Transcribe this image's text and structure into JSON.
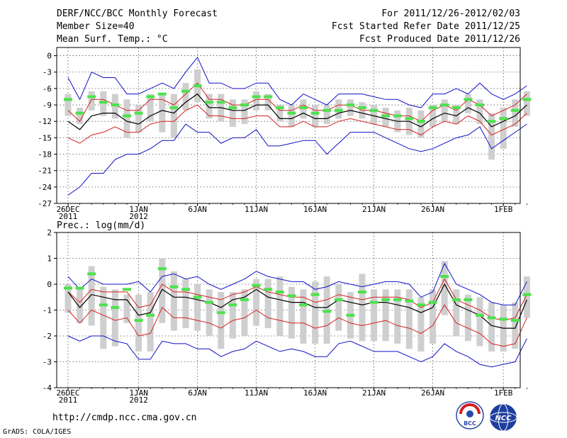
{
  "header": {
    "title": "DERF/NCC/BCC Monthly Forecast",
    "member_size": "Member Size=40",
    "variable1": "Mean Surf. Temp.: °C",
    "forecast_period": "For 2011/12/26-2012/02/03",
    "start_date": "Fcst Started Refer Date 2011/12/25",
    "produced_date": "Fcst Produced Date 2011/12/26"
  },
  "footer": {
    "url": "http://cmdp.ncc.cma.gov.cn",
    "credit": "GrADS: COLA/IGES",
    "logo_bcc": "BCC",
    "logo_ncc": "NCC"
  },
  "colors": {
    "ensemble_mean": "#000000",
    "spread_lines": "#d62020",
    "extreme_lines": "#1010c8",
    "members_bar": "#cfcfcf",
    "median_marker": "#4ce24c"
  },
  "chart_data": [
    {
      "type": "line",
      "title": "Mean Surf. Temp.: °C",
      "ylim": [
        -27,
        1.5
      ],
      "yticks": [
        0,
        -3,
        -6,
        -9,
        -12,
        -15,
        -18,
        -21,
        -24,
        -27
      ],
      "xticks": [
        {
          "day": 0,
          "label": "26DEC",
          "sub": "2011"
        },
        {
          "day": 6,
          "label": "1JAN",
          "sub": "2012"
        },
        {
          "day": 11,
          "label": "6JAN",
          "sub": ""
        },
        {
          "day": 16,
          "label": "11JAN",
          "sub": ""
        },
        {
          "day": 21,
          "label": "16JAN",
          "sub": ""
        },
        {
          "day": 26,
          "label": "21JAN",
          "sub": ""
        },
        {
          "day": 31,
          "label": "26JAN",
          "sub": ""
        },
        {
          "day": 37,
          "label": "1FEB",
          "sub": ""
        }
      ],
      "x": [
        0,
        1,
        2,
        3,
        4,
        5,
        6,
        7,
        8,
        9,
        10,
        11,
        12,
        13,
        14,
        15,
        16,
        17,
        18,
        19,
        20,
        21,
        22,
        23,
        24,
        25,
        26,
        27,
        28,
        29,
        30,
        31,
        32,
        33,
        34,
        35,
        36,
        37,
        38,
        39
      ],
      "series": [
        {
          "name": "max",
          "values": [
            -4,
            -8,
            -3,
            -4,
            -4,
            -7,
            -7,
            -6,
            -5,
            -6,
            -3,
            -0.3,
            -5,
            -5,
            -6,
            -6,
            -5,
            -5,
            -8,
            -9,
            -7,
            -8,
            -9,
            -7,
            -7,
            -7,
            -7.5,
            -8,
            -8,
            -9,
            -9.5,
            -7,
            -7,
            -6,
            -7,
            -5,
            -7,
            -8,
            -7,
            -5.5
          ]
        },
        {
          "name": "upper",
          "values": [
            -10,
            -12,
            -8,
            -8,
            -9,
            -10,
            -10,
            -8,
            -8,
            -9,
            -7,
            -5,
            -8,
            -8,
            -9,
            -9,
            -8,
            -8,
            -10,
            -10,
            -9,
            -10,
            -10,
            -9,
            -9,
            -10,
            -10,
            -10.5,
            -11,
            -11,
            -12,
            -10,
            -9,
            -10,
            -8,
            -9,
            -11,
            -10,
            -9,
            -7
          ]
        },
        {
          "name": "mean",
          "values": [
            -12,
            -13.5,
            -11,
            -10.5,
            -10.5,
            -12,
            -12.5,
            -11,
            -10,
            -10.5,
            -8.5,
            -7,
            -9.5,
            -9.5,
            -10,
            -10,
            -9,
            -9,
            -11.5,
            -11.5,
            -10.5,
            -11.5,
            -11.5,
            -10.5,
            -10,
            -10.5,
            -11,
            -11.5,
            -12,
            -12,
            -13,
            -11.5,
            -10.5,
            -11,
            -9.5,
            -10.5,
            -13,
            -12,
            -11,
            -9
          ]
        },
        {
          "name": "lower",
          "values": [
            -15,
            -16,
            -14.5,
            -14,
            -13,
            -14,
            -14,
            -12.5,
            -12,
            -12,
            -10,
            -9,
            -11,
            -11,
            -11.5,
            -11.5,
            -11,
            -11,
            -13,
            -13,
            -12,
            -13,
            -13,
            -12,
            -11.5,
            -12,
            -12.5,
            -13,
            -13.5,
            -13.5,
            -14.5,
            -13,
            -12,
            -12.5,
            -11,
            -12,
            -14.5,
            -13.5,
            -12.5,
            -10.5
          ]
        },
        {
          "name": "min",
          "values": [
            -25.5,
            -24,
            -21.5,
            -21.5,
            -19,
            -18,
            -18,
            -17,
            -15.5,
            -15.5,
            -12.5,
            -14,
            -14,
            -16,
            -15,
            -15,
            -13.5,
            -16.5,
            -16.5,
            -16,
            -15.5,
            -15.5,
            -18,
            -16,
            -14,
            -14,
            -14,
            -15,
            -16,
            -17,
            -17.5,
            -17,
            -16,
            -15,
            -14.5,
            -13,
            -17,
            -15.5,
            -14,
            -12.5
          ]
        },
        {
          "name": "median",
          "values": [
            -8,
            -10.5,
            -7.5,
            -8.5,
            -9,
            -11,
            -10.5,
            -7.5,
            -7,
            -9.5,
            -6.5,
            -5.5,
            -8.5,
            -8.5,
            -9.5,
            -9,
            -7.5,
            -7.5,
            -9.5,
            -10.5,
            -9.5,
            -10.5,
            -10,
            -10,
            -9,
            -9.5,
            -10,
            -11,
            -11,
            -11.5,
            -12,
            -9.5,
            -9,
            -9.5,
            -8,
            -9,
            -12,
            -11.5,
            -10,
            -8
          ]
        },
        {
          "name": "box_high",
          "values": [
            -7,
            -9.5,
            -6.5,
            -6.5,
            -7,
            -8,
            -9,
            -7,
            -7,
            -7,
            -5,
            -2.5,
            -7,
            -7,
            -8,
            -8,
            -6.5,
            -7,
            -9,
            -9,
            -8,
            -9,
            -9,
            -8,
            -8,
            -8.5,
            -9,
            -9.5,
            -10,
            -9.5,
            -10,
            -9,
            -8,
            -9,
            -7,
            -8,
            -10.5,
            -9.5,
            -8,
            -6.5
          ]
        },
        {
          "name": "box_low",
          "values": [
            -11,
            -12.5,
            -10,
            -11,
            -11.5,
            -15,
            -14,
            -12,
            -14,
            -15,
            -10,
            -8.5,
            -11.5,
            -12,
            -13,
            -12.5,
            -10,
            -10,
            -12,
            -13,
            -11.5,
            -13,
            -12.5,
            -11.5,
            -11,
            -11.5,
            -12.5,
            -13,
            -14,
            -14.5,
            -15,
            -13,
            -12,
            -12.5,
            -10.5,
            -12.5,
            -19,
            -17,
            -13,
            -11
          ]
        }
      ]
    },
    {
      "type": "line",
      "title": "Prec.: log(mm/d)",
      "ylim": [
        -4,
        2
      ],
      "yticks": [
        2,
        1,
        0,
        -1,
        -2,
        -3,
        -4
      ],
      "xticks": [
        {
          "day": 0,
          "label": "26DEC",
          "sub": "2011"
        },
        {
          "day": 6,
          "label": "1JAN",
          "sub": "2012"
        },
        {
          "day": 11,
          "label": "6JAN",
          "sub": ""
        },
        {
          "day": 16,
          "label": "11JAN",
          "sub": ""
        },
        {
          "day": 21,
          "label": "16JAN",
          "sub": ""
        },
        {
          "day": 26,
          "label": "21JAN",
          "sub": ""
        },
        {
          "day": 31,
          "label": "26JAN",
          "sub": ""
        },
        {
          "day": 37,
          "label": "1FEB",
          "sub": ""
        }
      ],
      "x": [
        0,
        1,
        2,
        3,
        4,
        5,
        6,
        7,
        8,
        9,
        10,
        11,
        12,
        13,
        14,
        15,
        16,
        17,
        18,
        19,
        20,
        21,
        22,
        23,
        24,
        25,
        26,
        27,
        28,
        29,
        30,
        31,
        32,
        33,
        34,
        35,
        36,
        37,
        38,
        39
      ],
      "series": [
        {
          "name": "max",
          "values": [
            0.3,
            -0.2,
            0.2,
            0,
            0,
            0,
            0.1,
            -0.3,
            0.3,
            0.4,
            0.2,
            0.3,
            0,
            -0.2,
            0,
            0.2,
            0.5,
            0.3,
            0.2,
            0.1,
            0.1,
            -0.2,
            -0.1,
            0.1,
            0,
            -0.1,
            0,
            0.1,
            0.1,
            0,
            -0.5,
            -0.3,
            0.8,
            0,
            -0.2,
            -0.4,
            -0.7,
            -0.8,
            -0.8,
            0.1
          ]
        },
        {
          "name": "upper",
          "values": [
            -0.3,
            -0.7,
            -0.2,
            -0.3,
            -0.3,
            -0.3,
            -0.9,
            -0.8,
            0,
            -0.3,
            -0.3,
            -0.4,
            -0.5,
            -0.6,
            -0.4,
            -0.3,
            -0.1,
            -0.3,
            -0.4,
            -0.5,
            -0.5,
            -0.7,
            -0.6,
            -0.4,
            -0.5,
            -0.6,
            -0.5,
            -0.5,
            -0.5,
            -0.6,
            -0.9,
            -0.7,
            0.2,
            -0.6,
            -0.8,
            -1,
            -1.3,
            -1.4,
            -1.3,
            -0.4
          ]
        },
        {
          "name": "mean",
          "values": [
            -0.3,
            -0.9,
            -0.4,
            -0.5,
            -0.6,
            -0.6,
            -1.2,
            -1.1,
            -0.2,
            -0.5,
            -0.5,
            -0.6,
            -0.7,
            -0.9,
            -0.6,
            -0.5,
            -0.2,
            -0.5,
            -0.6,
            -0.7,
            -0.7,
            -0.9,
            -0.9,
            -0.6,
            -0.7,
            -0.8,
            -0.7,
            -0.7,
            -0.8,
            -0.9,
            -1.1,
            -0.9,
            0,
            -0.8,
            -1,
            -1.2,
            -1.6,
            -1.7,
            -1.7,
            -0.6
          ]
        },
        {
          "name": "lower",
          "values": [
            -1,
            -1.5,
            -1,
            -1.2,
            -1.4,
            -1.3,
            -2,
            -1.9,
            -0.9,
            -1.3,
            -1.3,
            -1.4,
            -1.5,
            -1.7,
            -1.4,
            -1.3,
            -1,
            -1.3,
            -1.4,
            -1.5,
            -1.5,
            -1.7,
            -1.6,
            -1.3,
            -1.5,
            -1.6,
            -1.5,
            -1.4,
            -1.6,
            -1.7,
            -1.9,
            -1.6,
            -0.8,
            -1.5,
            -1.7,
            -1.9,
            -2.3,
            -2.4,
            -2.3,
            -1.3
          ]
        },
        {
          "name": "min",
          "values": [
            -2,
            -2.2,
            -2,
            -2,
            -2.2,
            -2.3,
            -2.9,
            -2.9,
            -2.2,
            -2.3,
            -2.3,
            -2.5,
            -2.5,
            -2.8,
            -2.6,
            -2.5,
            -2.2,
            -2.4,
            -2.6,
            -2.5,
            -2.6,
            -2.8,
            -2.8,
            -2.3,
            -2.2,
            -2.4,
            -2.6,
            -2.6,
            -2.6,
            -2.8,
            -3,
            -2.8,
            -2.3,
            -2.6,
            -2.8,
            -3.1,
            -3.2,
            -3.1,
            -3,
            -2.1
          ]
        },
        {
          "name": "median",
          "values": [
            -0.15,
            -0.15,
            0.4,
            -0.8,
            -0.9,
            -0.2,
            -1.4,
            -1.2,
            0.6,
            -0.1,
            -0.2,
            -0.5,
            -0.7,
            -1.1,
            -0.8,
            -0.6,
            -0.05,
            -0.2,
            -0.3,
            -0.45,
            -0.8,
            -0.4,
            -1.05,
            -0.6,
            -1.2,
            -0.3,
            -0.7,
            -0.6,
            -0.6,
            -0.65,
            -0.8,
            -0.7,
            0.3,
            -0.6,
            -0.6,
            -1.2,
            -1.3,
            -1.35,
            -1.4,
            -0.4
          ]
        },
        {
          "name": "box_high",
          "values": [
            0,
            -0.1,
            0.7,
            -0.1,
            -0.2,
            -0.4,
            -0.4,
            -0.3,
            1,
            0.5,
            0.2,
            0,
            -0.2,
            -0.3,
            -0.3,
            -0.2,
            0.2,
            0.2,
            0.3,
            -0.1,
            -0.2,
            0.1,
            0.3,
            0,
            -0.3,
            0.4,
            -0.2,
            -0.2,
            -0.2,
            -0.2,
            -0.5,
            -0.2,
            0.9,
            -0.2,
            -0.4,
            -0.5,
            -0.7,
            -0.8,
            -0.7,
            0.3
          ]
        },
        {
          "name": "box_low",
          "values": [
            -1.1,
            -1.5,
            -1.6,
            -2.5,
            -2.4,
            -1.5,
            -2.6,
            -2.6,
            -1.5,
            -1.8,
            -1.7,
            -1.8,
            -2,
            -2.5,
            -2.1,
            -2,
            -1.6,
            -1.7,
            -2,
            -2.1,
            -2.3,
            -2.3,
            -2.3,
            -1.8,
            -2.1,
            -2.2,
            -2.2,
            -2.2,
            -2.3,
            -2.5,
            -2.6,
            -2.3,
            -1.2,
            -2,
            -2.2,
            -2.4,
            -2.6,
            -2.6,
            -2.5,
            -1.3
          ]
        }
      ]
    }
  ]
}
